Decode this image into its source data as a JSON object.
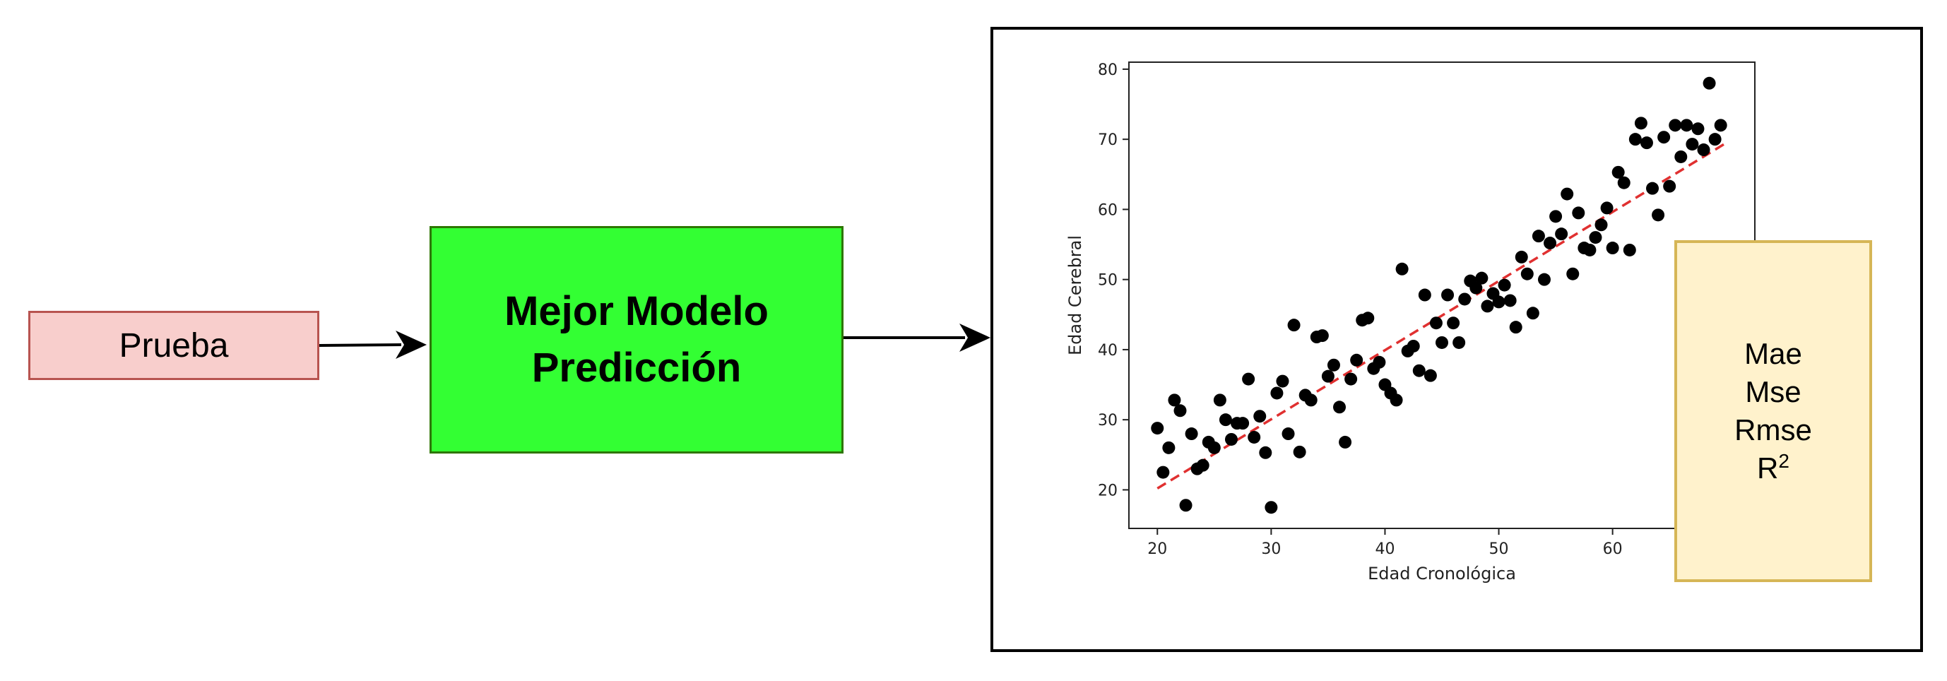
{
  "nodes": {
    "prueba": "Prueba",
    "modelo": [
      "Mejor Modelo",
      "Predicción"
    ],
    "metrics": [
      "Mae",
      "Mse",
      "Rmse"
    ],
    "r2": {
      "base": "R",
      "exp": "2"
    }
  },
  "chart_data": {
    "type": "scatter",
    "xlabel": "Edad Cronológica",
    "ylabel": "Edad Cerebral",
    "xlim": [
      17.5,
      72.5
    ],
    "ylim": [
      14.5,
      81
    ],
    "xticks": [
      20,
      30,
      40,
      50,
      60
    ],
    "yticks": [
      20,
      30,
      40,
      50,
      60,
      70,
      80
    ],
    "point_color": "#000000",
    "fit_line": {
      "color": "#e03030",
      "style": "dashed",
      "x": [
        20,
        70
      ],
      "y": [
        20.2,
        69.5
      ]
    },
    "points": [
      [
        20,
        28.8
      ],
      [
        20.5,
        22.5
      ],
      [
        21,
        26
      ],
      [
        21.5,
        32.8
      ],
      [
        22,
        31.3
      ],
      [
        22.5,
        17.8
      ],
      [
        23,
        28
      ],
      [
        23.5,
        23
      ],
      [
        24,
        23.5
      ],
      [
        24.5,
        26.8
      ],
      [
        25,
        26
      ],
      [
        25.5,
        32.8
      ],
      [
        26,
        30
      ],
      [
        26.5,
        27.2
      ],
      [
        27,
        29.5
      ],
      [
        27.5,
        29.5
      ],
      [
        28,
        35.8
      ],
      [
        28.5,
        27.5
      ],
      [
        29,
        30.5
      ],
      [
        29.5,
        25.3
      ],
      [
        30,
        17.5
      ],
      [
        30.5,
        33.8
      ],
      [
        31,
        35.5
      ],
      [
        31.5,
        28
      ],
      [
        32,
        43.5
      ],
      [
        32.5,
        25.4
      ],
      [
        33,
        33.5
      ],
      [
        33.5,
        32.8
      ],
      [
        34,
        41.8
      ],
      [
        34.5,
        42
      ],
      [
        35,
        36.2
      ],
      [
        35.5,
        37.8
      ],
      [
        36,
        31.8
      ],
      [
        36.5,
        26.8
      ],
      [
        37,
        35.8
      ],
      [
        37.5,
        38.5
      ],
      [
        38,
        44.2
      ],
      [
        38.5,
        44.5
      ],
      [
        39,
        37.3
      ],
      [
        39.5,
        38.2
      ],
      [
        40,
        35
      ],
      [
        40.5,
        33.8
      ],
      [
        41,
        32.8
      ],
      [
        41.5,
        51.5
      ],
      [
        42,
        39.8
      ],
      [
        42.5,
        40.5
      ],
      [
        43,
        37
      ],
      [
        43.5,
        47.8
      ],
      [
        44,
        36.3
      ],
      [
        44.5,
        43.8
      ],
      [
        45,
        41
      ],
      [
        45.5,
        47.8
      ],
      [
        46,
        43.8
      ],
      [
        46.5,
        41
      ],
      [
        47,
        47.2
      ],
      [
        47.5,
        49.8
      ],
      [
        48,
        48.8
      ],
      [
        48.5,
        50.2
      ],
      [
        49,
        46.2
      ],
      [
        49.5,
        48
      ],
      [
        50,
        46.8
      ],
      [
        50.5,
        49.2
      ],
      [
        51,
        47
      ],
      [
        51.5,
        43.2
      ],
      [
        52,
        53.2
      ],
      [
        52.5,
        50.8
      ],
      [
        53,
        45.2
      ],
      [
        53.5,
        56.2
      ],
      [
        54,
        50
      ],
      [
        54.5,
        55.2
      ],
      [
        55,
        59
      ],
      [
        55.5,
        56.5
      ],
      [
        56,
        62.2
      ],
      [
        56.5,
        50.8
      ],
      [
        57,
        59.5
      ],
      [
        57.5,
        54.5
      ],
      [
        58,
        54.2
      ],
      [
        58.5,
        56
      ],
      [
        59,
        57.8
      ],
      [
        59.5,
        60.2
      ],
      [
        60,
        54.5
      ],
      [
        60.5,
        65.3
      ],
      [
        61,
        63.8
      ],
      [
        61.5,
        54.2
      ],
      [
        62,
        70
      ],
      [
        62.5,
        72.3
      ],
      [
        63,
        69.5
      ],
      [
        63.5,
        63
      ],
      [
        64,
        59.2
      ],
      [
        64.5,
        70.3
      ],
      [
        65,
        63.3
      ],
      [
        65.5,
        72
      ],
      [
        66,
        67.5
      ],
      [
        66.5,
        72
      ],
      [
        67,
        69.3
      ],
      [
        67.5,
        71.5
      ],
      [
        68,
        68.5
      ],
      [
        68.5,
        78
      ],
      [
        69,
        70
      ],
      [
        69.5,
        72
      ]
    ]
  }
}
